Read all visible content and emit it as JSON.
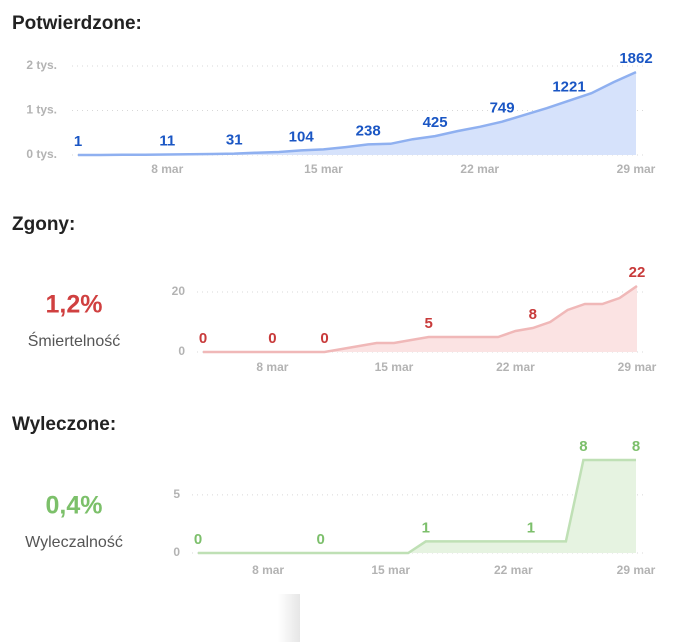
{
  "chart_data": [
    {
      "type": "area",
      "title": "Potwierdzone:",
      "x": [
        4,
        5,
        6,
        7,
        8,
        9,
        10,
        11,
        12,
        13,
        14,
        15,
        16,
        17,
        18,
        19,
        20,
        21,
        22,
        23,
        24,
        25,
        26,
        27,
        28,
        29
      ],
      "values": [
        1,
        1,
        5,
        6,
        11,
        17,
        22,
        31,
        51,
        68,
        104,
        125,
        177,
        238,
        251,
        355,
        425,
        536,
        634,
        749,
        901,
        1051,
        1221,
        1389,
        1638,
        1862
      ],
      "value_labels": [
        "1",
        null,
        null,
        null,
        "11",
        null,
        null,
        "31",
        null,
        null,
        "104",
        null,
        null,
        "238",
        null,
        null,
        "425",
        null,
        null,
        "749",
        null,
        null,
        "1221",
        null,
        null,
        "1862"
      ],
      "xlim": [
        4,
        29
      ],
      "xticks": [
        {
          "value": 8,
          "label": "8 mar"
        },
        {
          "value": 15,
          "label": "15 mar"
        },
        {
          "value": 22,
          "label": "22 mar"
        },
        {
          "value": 29,
          "label": "29 mar"
        }
      ],
      "ylim": [
        0,
        2000
      ],
      "yticks": [
        {
          "value": 0,
          "label": "0 tys."
        },
        {
          "value": 1000,
          "label": "1 tys."
        },
        {
          "value": 2000,
          "label": "2 tys."
        }
      ],
      "grid": true,
      "color": "#8fb0f0",
      "fill_color": "#d6e2fb",
      "label_color": "#1a56c4"
    },
    {
      "type": "area",
      "title": "Zgony:",
      "stat_value": "1,2%",
      "stat_label": "Śmiertelność",
      "stat_color": "#d04040",
      "x": [
        4,
        5,
        6,
        7,
        8,
        9,
        10,
        11,
        12,
        13,
        14,
        15,
        16,
        17,
        18,
        19,
        20,
        21,
        22,
        23,
        24,
        25,
        26,
        27,
        28,
        29
      ],
      "values": [
        0,
        0,
        0,
        0,
        0,
        0,
        0,
        0,
        1,
        2,
        3,
        3,
        4,
        5,
        5,
        5,
        5,
        5,
        7,
        8,
        10,
        14,
        16,
        16,
        18,
        22
      ],
      "value_labels": [
        "0",
        null,
        null,
        null,
        "0",
        null,
        null,
        "0",
        null,
        null,
        null,
        null,
        null,
        "5",
        null,
        null,
        null,
        null,
        null,
        "8",
        null,
        null,
        null,
        null,
        null,
        "22"
      ],
      "xlim": [
        4,
        29
      ],
      "xticks": [
        {
          "value": 8,
          "label": "8 mar"
        },
        {
          "value": 15,
          "label": "15 mar"
        },
        {
          "value": 22,
          "label": "22 mar"
        },
        {
          "value": 29,
          "label": "29 mar"
        }
      ],
      "ylim": [
        0,
        22
      ],
      "yticks": [
        0,
        20
      ],
      "grid": true,
      "color": "#f0b8b8",
      "fill_color": "#fbe3e3",
      "label_color": "#c83a3a"
    },
    {
      "type": "area",
      "title": "Wyleczone:",
      "stat_value": "0,4%",
      "stat_label": "Wyleczalność",
      "stat_color": "#7cc06a",
      "x": [
        4,
        5,
        6,
        7,
        8,
        9,
        10,
        11,
        12,
        13,
        14,
        15,
        16,
        17,
        18,
        19,
        20,
        21,
        22,
        23,
        24,
        25,
        26,
        27,
        28,
        29
      ],
      "values": [
        0,
        0,
        0,
        0,
        0,
        0,
        0,
        0,
        0,
        0,
        0,
        0,
        0,
        1,
        1,
        1,
        1,
        1,
        1,
        1,
        1,
        1,
        8,
        8,
        8,
        8
      ],
      "value_labels": [
        "0",
        null,
        null,
        null,
        null,
        null,
        null,
        "0",
        null,
        null,
        null,
        null,
        null,
        "1",
        null,
        null,
        null,
        null,
        null,
        "1",
        null,
        null,
        "8",
        null,
        null,
        "8"
      ],
      "xlim": [
        4,
        29
      ],
      "xticks": [
        {
          "value": 8,
          "label": "8 mar"
        },
        {
          "value": 15,
          "label": "15 mar"
        },
        {
          "value": 22,
          "label": "22 mar"
        },
        {
          "value": 29,
          "label": "29 mar"
        }
      ],
      "ylim": [
        0,
        8
      ],
      "yticks": [
        0,
        5
      ],
      "grid": true,
      "color": "#bfe0b5",
      "fill_color": "#e6f3e1",
      "label_color": "#7cbf6b"
    }
  ]
}
